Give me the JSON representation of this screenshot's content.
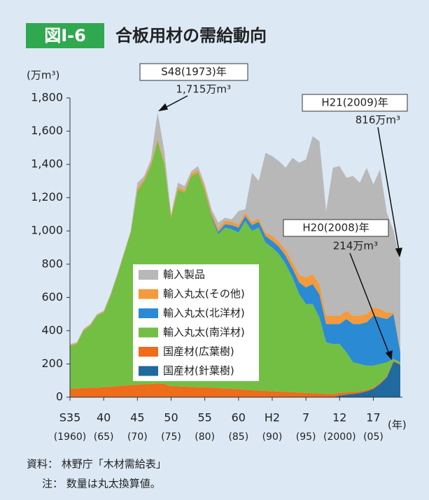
{
  "chart_data": {
    "type": "stacked_area",
    "figure_label": "図Ⅰ-6",
    "title": "合板用材の需給動向",
    "y_unit": "(万m³)",
    "x_unit": "(年)",
    "source": "資料： 林野庁「木材需給表」",
    "note": "注： 数量は丸太換算値。",
    "annotations": [
      {
        "label": "S48(1973)年",
        "text": "1,715万m³"
      },
      {
        "label": "H21(2009)年",
        "text": "816万m³"
      },
      {
        "label": "H20(2008)年",
        "text": "214万m³"
      }
    ],
    "x": [
      1960,
      1961,
      1962,
      1963,
      1964,
      1965,
      1966,
      1967,
      1968,
      1969,
      1970,
      1971,
      1972,
      1973,
      1974,
      1975,
      1976,
      1977,
      1978,
      1979,
      1980,
      1981,
      1982,
      1983,
      1984,
      1985,
      1986,
      1987,
      1988,
      1989,
      1990,
      1991,
      1992,
      1993,
      1994,
      1995,
      1996,
      1997,
      1998,
      1999,
      2000,
      2001,
      2002,
      2003,
      2004,
      2005,
      2006,
      2007,
      2008,
      2009
    ],
    "xlim": [
      1960,
      2009
    ],
    "xticks": [
      {
        "value": 1960,
        "label": "S35",
        "label2": "(1960)"
      },
      {
        "value": 1965,
        "label": "40",
        "label2": "(65)"
      },
      {
        "value": 1970,
        "label": "45",
        "label2": "(70)"
      },
      {
        "value": 1975,
        "label": "50",
        "label2": "(75)"
      },
      {
        "value": 1980,
        "label": "55",
        "label2": "(80)"
      },
      {
        "value": 1985,
        "label": "60",
        "label2": "(85)"
      },
      {
        "value": 1990,
        "label": "H2",
        "label2": "(90)"
      },
      {
        "value": 1995,
        "label": "7",
        "label2": "(95)"
      },
      {
        "value": 2000,
        "label": "12",
        "label2": "(2000)"
      },
      {
        "value": 2005,
        "label": "17",
        "label2": "(05)"
      }
    ],
    "ylim": [
      0,
      1800
    ],
    "yticks": [
      0,
      200,
      400,
      600,
      800,
      {
        "value": 1000,
        "label": "1,000"
      },
      {
        "value": 1200,
        "label": "1,200"
      },
      {
        "value": 1400,
        "label": "1,400"
      },
      {
        "value": 1600,
        "label": "1,600"
      },
      {
        "value": 1800,
        "label": "1,800"
      }
    ],
    "series": [
      {
        "name": "輸入製品",
        "color": "#b8b8b8",
        "values": [
          5,
          5,
          5,
          5,
          5,
          5,
          5,
          5,
          5,
          5,
          35,
          15,
          25,
          160,
          65,
          5,
          25,
          25,
          15,
          25,
          20,
          20,
          35,
          20,
          15,
          80,
          20,
          295,
          225,
          480,
          480,
          485,
          495,
          625,
          675,
          710,
          830,
          860,
          630,
          890,
          900,
          800,
          840,
          800,
          880,
          740,
          840,
          600,
          490,
          536
        ]
      },
      {
        "name": "輸入丸太(その他)",
        "color": "#f39a3c",
        "values": [
          5,
          5,
          5,
          5,
          5,
          5,
          5,
          5,
          5,
          5,
          15,
          15,
          15,
          15,
          15,
          15,
          15,
          15,
          15,
          15,
          20,
          20,
          20,
          20,
          20,
          20,
          20,
          20,
          20,
          20,
          30,
          30,
          35,
          40,
          45,
          60,
          60,
          60,
          50,
          50,
          50,
          50,
          50,
          50,
          50,
          50,
          50,
          40,
          10,
          10
        ]
      },
      {
        "name": "輸入丸太(北洋材)",
        "color": "#2b8ad4",
        "values": [
          0,
          0,
          0,
          0,
          0,
          0,
          0,
          0,
          0,
          0,
          0,
          0,
          0,
          0,
          0,
          0,
          0,
          0,
          0,
          0,
          0,
          10,
          15,
          20,
          25,
          30,
          30,
          35,
          35,
          40,
          40,
          45,
          50,
          55,
          70,
          100,
          120,
          140,
          110,
          120,
          120,
          200,
          230,
          240,
          260,
          300,
          280,
          260,
          270,
          60
        ]
      },
      {
        "name": "輸入丸太(南洋材)",
        "color": "#72bf44",
        "values": [
          260,
          268,
          345,
          373,
          432,
          450,
          547,
          664,
          790,
          918,
          1165,
          1222,
          1310,
          1458,
          1320,
          1015,
          1185,
          1167,
          1268,
          1290,
          1180,
          1022,
          925,
          968,
          960,
          942,
          1015,
          958,
          980,
          892,
          864,
          826,
          768,
          690,
          592,
          534,
          536,
          458,
          310,
          302,
          294,
          241,
          178,
          165,
          147,
          133,
          114,
          85,
          11,
          10
        ]
      },
      {
        "name": "国産材(広葉樹)",
        "color": "#ee6c1a",
        "values": [
          50,
          52,
          55,
          57,
          58,
          60,
          63,
          66,
          70,
          72,
          75,
          78,
          80,
          82,
          80,
          65,
          65,
          63,
          62,
          60,
          60,
          58,
          55,
          52,
          50,
          48,
          45,
          42,
          40,
          38,
          36,
          34,
          32,
          30,
          28,
          26,
          24,
          22,
          20,
          18,
          16,
          14,
          12,
          10,
          8,
          7,
          6,
          5,
          5,
          5
        ]
      },
      {
        "name": "国産材(針葉樹)",
        "color": "#1f6a9e",
        "values": [
          0,
          0,
          0,
          0,
          0,
          0,
          0,
          0,
          0,
          0,
          0,
          0,
          0,
          0,
          0,
          0,
          0,
          0,
          0,
          0,
          0,
          0,
          0,
          0,
          0,
          0,
          0,
          0,
          0,
          0,
          0,
          0,
          0,
          0,
          0,
          0,
          0,
          0,
          0,
          0,
          10,
          15,
          20,
          25,
          35,
          50,
          80,
          120,
          214,
          195
        ]
      }
    ]
  }
}
